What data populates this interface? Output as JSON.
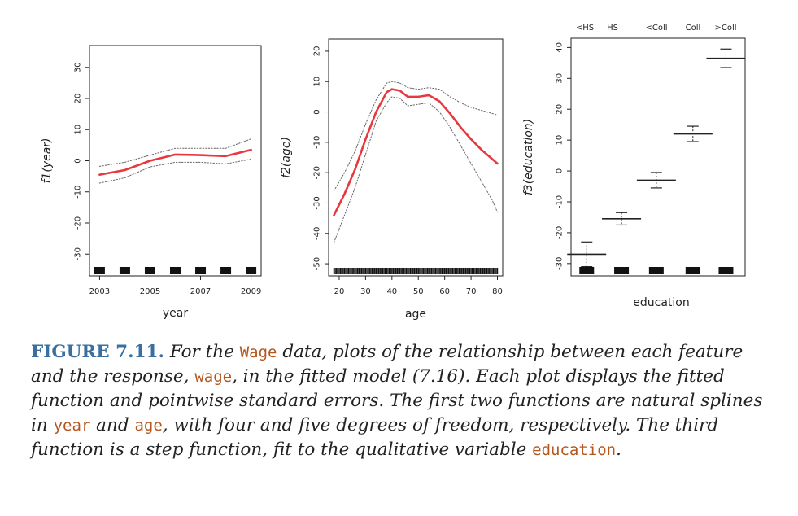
{
  "chart_data": [
    {
      "type": "line",
      "panel": "year",
      "xlabel": "year",
      "ylabel": "f1(year)",
      "xlim": [
        2002.6,
        2009.4
      ],
      "ylim": [
        -37,
        37
      ],
      "x_ticks": [
        "2003",
        "2005",
        "2007",
        "2009"
      ],
      "y_ticks": [
        "-30",
        "-20",
        "-10",
        "0",
        "10",
        "20",
        "30"
      ],
      "series": [
        {
          "role": "fit",
          "color": "#e8383d",
          "x": [
            2003,
            2004,
            2005,
            2006,
            2007,
            2008,
            2009
          ],
          "y": [
            -4.5,
            -3,
            0,
            2,
            1.8,
            1.5,
            3.5
          ]
        },
        {
          "role": "upper-se",
          "color": "#666666",
          "x": [
            2003,
            2004,
            2005,
            2006,
            2007,
            2008,
            2009
          ],
          "y": [
            -1.8,
            -0.5,
            1.8,
            4,
            4,
            4,
            7
          ]
        },
        {
          "role": "lower-se",
          "color": "#666666",
          "x": [
            2003,
            2004,
            2005,
            2006,
            2007,
            2008,
            2009
          ],
          "y": [
            -7.2,
            -5.5,
            -2,
            -0.5,
            -0.5,
            -1,
            0.5
          ]
        }
      ],
      "rug": [
        2003,
        2004,
        2005,
        2006,
        2007,
        2008,
        2009
      ]
    },
    {
      "type": "line",
      "panel": "age",
      "xlabel": "age",
      "ylabel": "f2(age)",
      "xlim": [
        16,
        82
      ],
      "ylim": [
        -54,
        24
      ],
      "x_ticks": [
        "20",
        "30",
        "40",
        "50",
        "60",
        "70",
        "80"
      ],
      "y_ticks": [
        "-50",
        "-40",
        "-30",
        "-20",
        "-10",
        "0",
        "10",
        "20"
      ],
      "series": [
        {
          "role": "fit",
          "color": "#e8383d",
          "x": [
            18,
            22,
            26,
            30,
            34,
            38,
            40,
            43,
            46,
            50,
            54,
            58,
            62,
            66,
            70,
            74,
            78,
            80
          ],
          "y": [
            -34,
            -27,
            -19,
            -9,
            0,
            6.5,
            7.5,
            7,
            5,
            5,
            5.5,
            3.5,
            -0.5,
            -5,
            -9,
            -12.5,
            -15.5,
            -17
          ]
        },
        {
          "role": "upper-se",
          "color": "#666666",
          "x": [
            18,
            22,
            26,
            30,
            34,
            38,
            40,
            43,
            46,
            50,
            54,
            58,
            62,
            66,
            70,
            74,
            78,
            80
          ],
          "y": [
            -26,
            -20,
            -13,
            -4,
            4,
            9.5,
            10,
            9.5,
            8,
            7.5,
            8,
            7.5,
            5,
            3,
            1.5,
            0.5,
            -0.5,
            -1
          ]
        },
        {
          "role": "lower-se",
          "color": "#666666",
          "x": [
            18,
            22,
            26,
            30,
            34,
            38,
            40,
            43,
            46,
            50,
            54,
            58,
            62,
            66,
            70,
            74,
            78,
            80
          ],
          "y": [
            -43,
            -34,
            -25,
            -14,
            -3,
            3,
            5,
            4.5,
            2,
            2.5,
            3,
            0,
            -5,
            -11,
            -17,
            -23,
            -29,
            -33
          ]
        }
      ],
      "rug_range": [
        18,
        80
      ]
    },
    {
      "type": "step",
      "panel": "education",
      "xlabel": "education",
      "ylabel": "f3(education)",
      "ylim": [
        -34,
        43
      ],
      "y_ticks": [
        "-30",
        "-20",
        "-10",
        "0",
        "10",
        "20",
        "30",
        "40"
      ],
      "categories": [
        "<HS",
        "HS",
        "<Coll",
        "Coll",
        ">Coll"
      ],
      "values": [
        -27,
        -15.5,
        -3,
        12,
        36.5
      ],
      "se_upper": [
        -23,
        -13.5,
        -0.5,
        14.5,
        39.5
      ],
      "se_lower": [
        -31,
        -17.5,
        -5.5,
        9.5,
        33.5
      ]
    }
  ],
  "caption": {
    "label": "FIGURE 7.11.",
    "t1": " For the ",
    "c1": "Wage",
    "t2": " data, plots of the relationship between each feature and the response, ",
    "c2": "wage",
    "t3": ", in the fitted model (7.16). Each plot displays the fitted function and pointwise standard errors. The first two functions are natural splines in ",
    "c3": "year",
    "t4": " and ",
    "c4": "age",
    "t5": ", with four and five degrees of freedom, respectively. The third function is a step function, fit to the qualitative variable ",
    "c5": "education",
    "t6": "."
  }
}
